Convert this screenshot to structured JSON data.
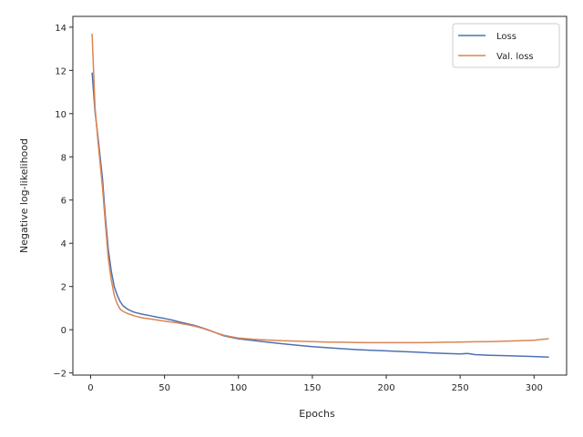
{
  "chart_data": {
    "type": "line",
    "title": "",
    "xlabel": "Epochs",
    "ylabel": "Negative log-likelihood",
    "xlim": [
      -12,
      322
    ],
    "ylim": [
      -2.1,
      14.5
    ],
    "xticks": [
      0,
      50,
      100,
      150,
      200,
      250,
      300
    ],
    "yticks": [
      -2,
      0,
      2,
      4,
      6,
      8,
      10,
      12,
      14
    ],
    "ytick_labels": [
      "−2",
      "0",
      "2",
      "4",
      "6",
      "8",
      "10",
      "12",
      "14"
    ],
    "grid": false,
    "legend_position": "top-right",
    "series": [
      {
        "name": "Loss",
        "color": "#4c72b0",
        "x": [
          1,
          3,
          5,
          8,
          10,
          12,
          14,
          16,
          18,
          20,
          22,
          25,
          28,
          30,
          35,
          40,
          45,
          50,
          55,
          60,
          65,
          70,
          75,
          80,
          85,
          90,
          95,
          100,
          110,
          120,
          130,
          140,
          150,
          160,
          170,
          180,
          190,
          200,
          210,
          220,
          230,
          240,
          250,
          255,
          260,
          270,
          280,
          290,
          300,
          310
        ],
        "y": [
          11.9,
          10.1,
          8.9,
          7.0,
          5.2,
          3.7,
          2.7,
          2.0,
          1.6,
          1.3,
          1.1,
          0.95,
          0.85,
          0.8,
          0.72,
          0.65,
          0.58,
          0.52,
          0.45,
          0.36,
          0.28,
          0.2,
          0.1,
          -0.02,
          -0.15,
          -0.28,
          -0.35,
          -0.42,
          -0.5,
          -0.58,
          -0.65,
          -0.72,
          -0.78,
          -0.83,
          -0.88,
          -0.92,
          -0.95,
          -0.98,
          -1.01,
          -1.04,
          -1.07,
          -1.1,
          -1.12,
          -1.1,
          -1.15,
          -1.18,
          -1.2,
          -1.22,
          -1.24,
          -1.27
        ]
      },
      {
        "name": "Val. loss",
        "color": "#dd8452",
        "x": [
          1,
          3,
          5,
          8,
          10,
          12,
          14,
          16,
          18,
          20,
          22,
          25,
          28,
          30,
          35,
          40,
          45,
          50,
          55,
          60,
          65,
          70,
          75,
          80,
          85,
          90,
          95,
          100,
          110,
          120,
          130,
          140,
          150,
          160,
          170,
          180,
          190,
          200,
          210,
          220,
          230,
          240,
          250,
          260,
          270,
          280,
          290,
          300,
          305,
          310
        ],
        "y": [
          13.7,
          10.3,
          8.7,
          6.6,
          4.9,
          3.3,
          2.3,
          1.6,
          1.2,
          0.95,
          0.85,
          0.75,
          0.68,
          0.63,
          0.55,
          0.5,
          0.45,
          0.4,
          0.35,
          0.3,
          0.24,
          0.17,
          0.08,
          -0.03,
          -0.15,
          -0.25,
          -0.32,
          -0.38,
          -0.44,
          -0.48,
          -0.51,
          -0.53,
          -0.55,
          -0.57,
          -0.58,
          -0.59,
          -0.6,
          -0.6,
          -0.6,
          -0.6,
          -0.59,
          -0.58,
          -0.57,
          -0.56,
          -0.55,
          -0.53,
          -0.51,
          -0.49,
          -0.45,
          -0.42
        ]
      }
    ]
  }
}
